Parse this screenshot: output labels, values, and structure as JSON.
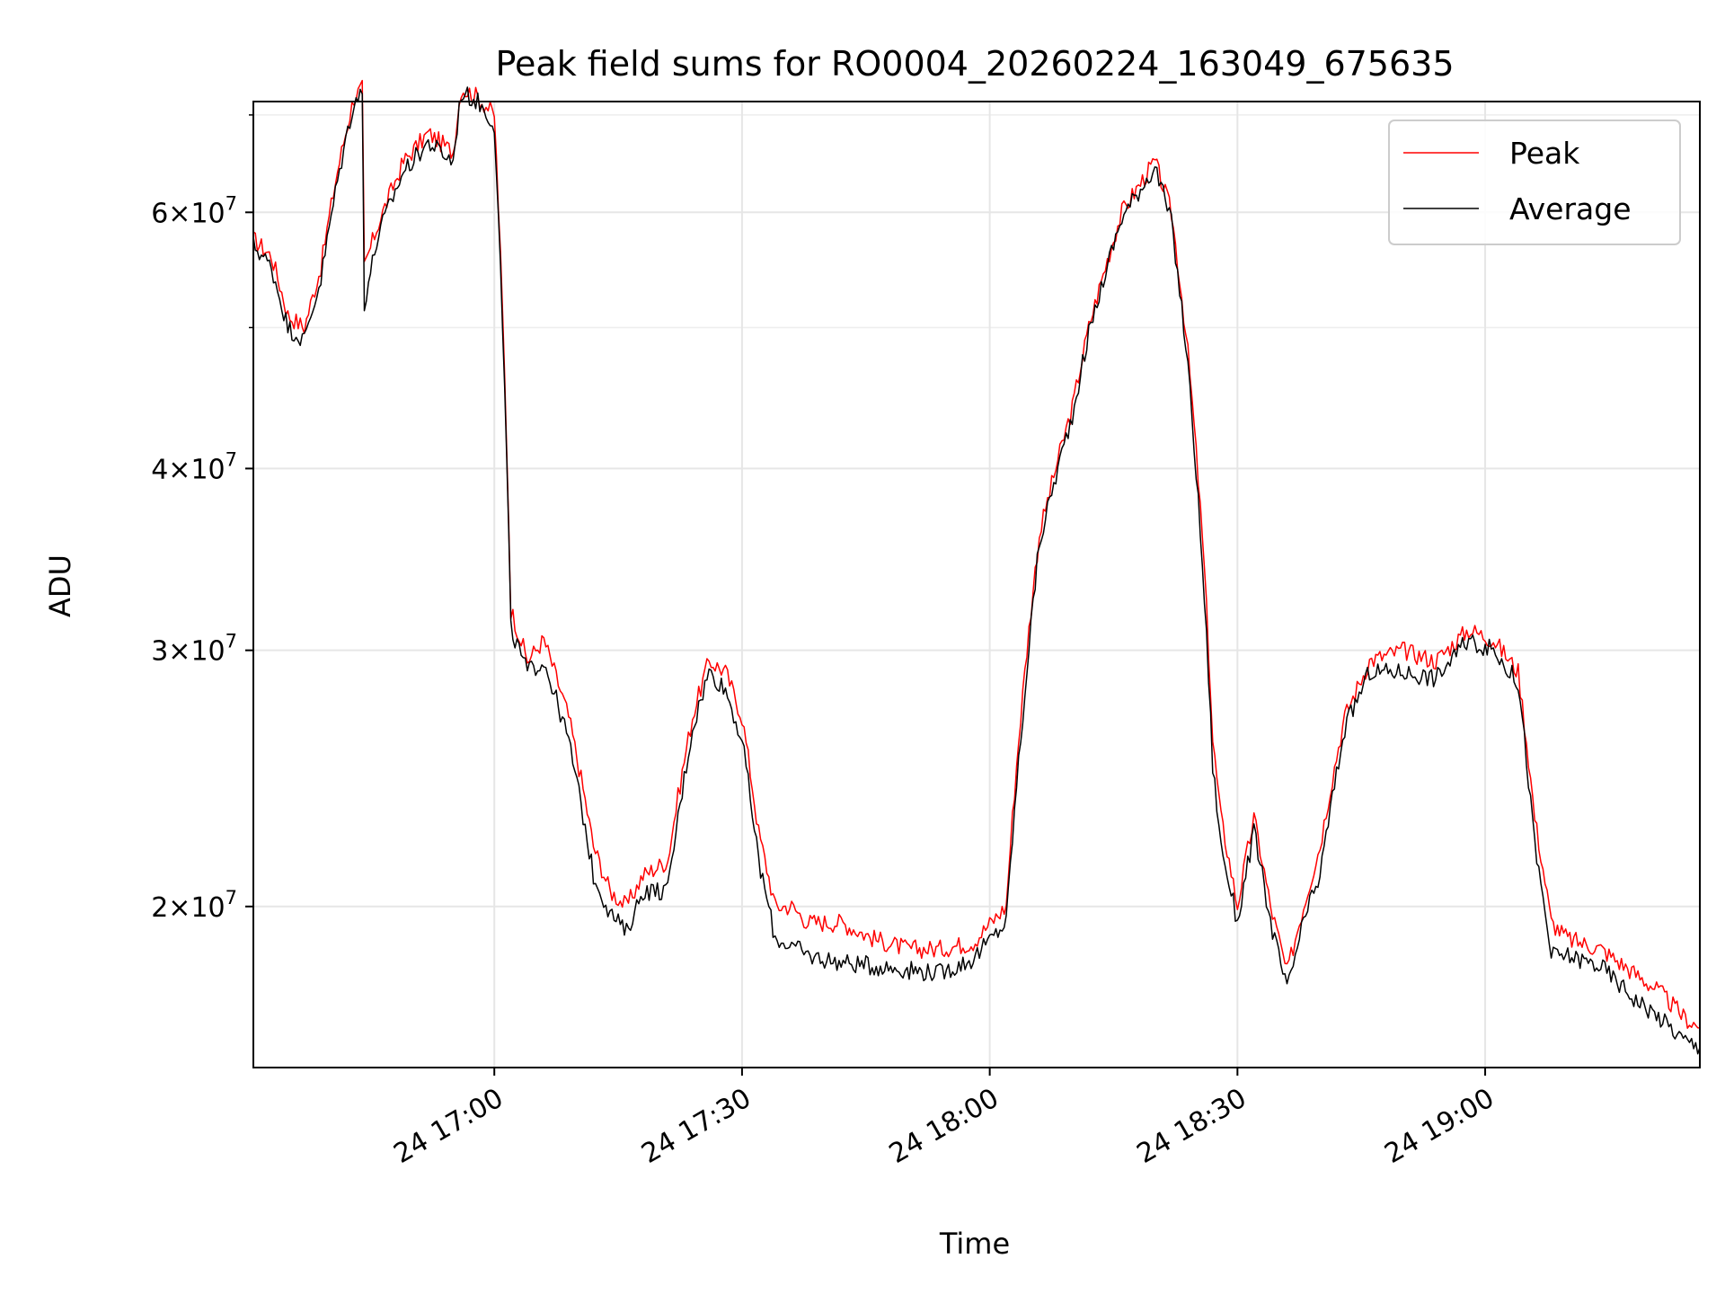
{
  "chart_data": {
    "type": "line",
    "title": "Peak field sums for RO0004_20260224_163049_675635",
    "xlabel": "Time",
    "ylabel": "ADU",
    "yscale": "log",
    "ylim": [
      15500000,
      71500000
    ],
    "xlim": [
      "2026-02-24 16:30:49",
      "2026-02-24 19:26:00"
    ],
    "grid": true,
    "legend_position": "top-right",
    "x_ticks": [
      "24 17:00",
      "24 17:30",
      "24 18:00",
      "24 18:30",
      "24 19:00"
    ],
    "y_ticks": [
      {
        "value": 20000000,
        "base": "2",
        "exp": "7"
      },
      {
        "value": 30000000,
        "base": "3",
        "exp": "7"
      },
      {
        "value": 40000000,
        "base": "4",
        "exp": "7"
      },
      {
        "value": 60000000,
        "base": "6",
        "exp": "7"
      }
    ],
    "y_minor_ticks": [
      50000000,
      70000000
    ],
    "x": [
      "16:30:49",
      "16:33",
      "16:35",
      "16:37",
      "16:39",
      "16:41",
      "16:43",
      "16:44",
      "16:44:15",
      "16:46",
      "16:49",
      "16:52",
      "16:55",
      "16:56",
      "16:58",
      "17:00",
      "17:02",
      "17:04",
      "17:06",
      "17:09",
      "17:12",
      "17:14",
      "17:16",
      "17:18",
      "17:21",
      "17:24",
      "17:26",
      "17:28",
      "17:30",
      "17:32",
      "17:34",
      "17:36",
      "17:38",
      "17:42",
      "17:46",
      "17:50",
      "17:54",
      "17:58",
      "18:02",
      "18:04",
      "18:06",
      "18:08",
      "18:10",
      "18:12",
      "18:16",
      "18:20",
      "18:22",
      "18:24",
      "18:26",
      "18:27",
      "18:28",
      "18:30",
      "18:32",
      "18:34",
      "18:36",
      "18:38",
      "18:40",
      "18:43",
      "18:46",
      "18:50",
      "18:54",
      "18:58",
      "19:01",
      "19:04",
      "19:06",
      "19:08",
      "19:10",
      "19:14",
      "19:18",
      "19:21",
      "19:24",
      "19:26"
    ],
    "series": [
      {
        "name": "Peak",
        "color": "#ff0000",
        "values": [
          57500000,
          56000000,
          51000000,
          50000000,
          55000000,
          64000000,
          72000000,
          73000000,
          55000000,
          59000000,
          65000000,
          68000000,
          66000000,
          73000000,
          72000000,
          70000000,
          32000000,
          29500000,
          30500000,
          27000000,
          22000000,
          20500000,
          20000000,
          21000000,
          21500000,
          27000000,
          29500000,
          29000000,
          27000000,
          22500000,
          20000000,
          20000000,
          19500000,
          19500000,
          19000000,
          18700000,
          18700000,
          18900000,
          20000000,
          28000000,
          36000000,
          40000000,
          44000000,
          50000000,
          60000000,
          65000000,
          60000000,
          48000000,
          34000000,
          26000000,
          23000000,
          20000000,
          23000000,
          20000000,
          18000000,
          20000000,
          22000000,
          27000000,
          29500000,
          30000000,
          29500000,
          31000000,
          30500000,
          29000000,
          23000000,
          19500000,
          19000000,
          18700000,
          18000000,
          17500000,
          16800000,
          16500000
        ]
      },
      {
        "name": "Average",
        "color": "#000000",
        "values": [
          57000000,
          55000000,
          50000000,
          49000000,
          54000000,
          63000000,
          71500000,
          72500000,
          52000000,
          58000000,
          64000000,
          67000000,
          65000000,
          72500000,
          71500000,
          69000000,
          31000000,
          29000000,
          29500000,
          26000000,
          21000000,
          19800000,
          19200000,
          20500000,
          20500000,
          26500000,
          29000000,
          28200000,
          26000000,
          21500000,
          19000000,
          18800000,
          18500000,
          18300000,
          18200000,
          18100000,
          18000000,
          18400000,
          19500000,
          27000000,
          35500000,
          39500000,
          43500000,
          49500000,
          59500000,
          64500000,
          59000000,
          47000000,
          32500000,
          25000000,
          22000000,
          19500000,
          22500000,
          19500000,
          17500000,
          19500000,
          21000000,
          26500000,
          29000000,
          29000000,
          28700000,
          30500000,
          30000000,
          28500000,
          22000000,
          18500000,
          18500000,
          18200000,
          17300000,
          16800000,
          16200000,
          16000000
        ]
      }
    ]
  }
}
